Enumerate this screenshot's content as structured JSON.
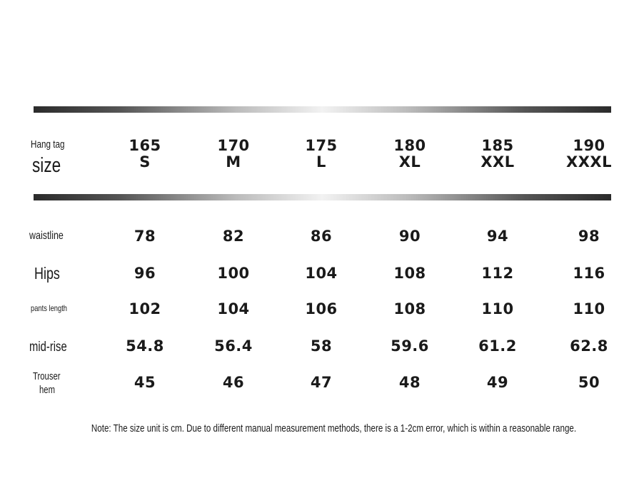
{
  "header": {
    "label_line1": "Hang tag",
    "label_line2": "size",
    "sizes": [
      {
        "height": "165",
        "size": "S"
      },
      {
        "height": "170",
        "size": "M"
      },
      {
        "height": "175",
        "size": "L"
      },
      {
        "height": "180",
        "size": "XL"
      },
      {
        "height": "185",
        "size": "XXL"
      },
      {
        "height": "190",
        "size": "XXXL"
      }
    ]
  },
  "rows": [
    {
      "label": "waistline",
      "values": [
        "78",
        "82",
        "86",
        "90",
        "94",
        "98"
      ]
    },
    {
      "label": "Hips",
      "values": [
        "96",
        "100",
        "104",
        "108",
        "112",
        "116"
      ]
    },
    {
      "label": "pants length",
      "values": [
        "102",
        "104",
        "106",
        "108",
        "110",
        "110"
      ]
    },
    {
      "label": "mid-rise",
      "values": [
        "54.8",
        "56.4",
        "58",
        "59.6",
        "61.2",
        "62.8"
      ]
    },
    {
      "label_line1": "Trouser",
      "label_line2": "hem",
      "values": [
        "45",
        "46",
        "47",
        "48",
        "49",
        "50"
      ]
    }
  ],
  "note": "Note: The size unit is cm. Due to different manual measurement methods, there is a 1-2cm error, which is within a reasonable range."
}
